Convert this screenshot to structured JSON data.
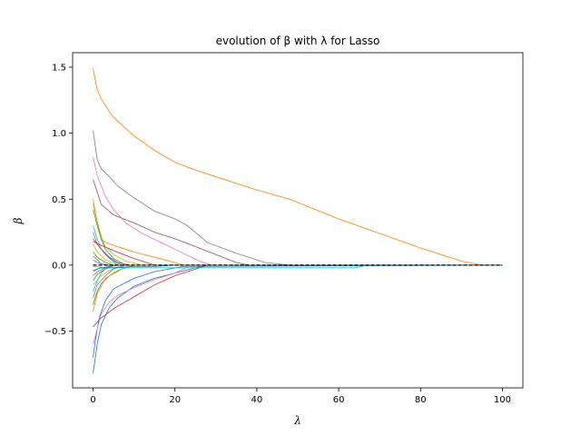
{
  "chart_data": {
    "type": "line",
    "title": "evolution of β with λ for Lasso",
    "xlabel": "λ",
    "ylabel": "β",
    "xlim": [
      -5,
      105
    ],
    "ylim": [
      -0.93,
      1.61
    ],
    "xticks": [
      0,
      20,
      40,
      60,
      80,
      100
    ],
    "yticks": [
      -0.5,
      0.0,
      0.5,
      1.0,
      1.5
    ],
    "xtick_labels": [
      "0",
      "20",
      "40",
      "60",
      "80",
      "100"
    ],
    "ytick_labels": [
      "−0.5",
      "0.0",
      "0.5",
      "1.0",
      "1.5"
    ],
    "grid": false,
    "legend": false,
    "reference_line": {
      "y": 0,
      "style": "dashed",
      "color": "#000000"
    },
    "series": [
      {
        "color": "#ff7f0e",
        "x": [
          0,
          1,
          2,
          4,
          5,
          10,
          15,
          20,
          25,
          30,
          40,
          48,
          60,
          70,
          80,
          90,
          95,
          100
        ],
        "y": [
          1.49,
          1.33,
          1.26,
          1.16,
          1.12,
          0.98,
          0.87,
          0.78,
          0.72,
          0.67,
          0.57,
          0.5,
          0.35,
          0.24,
          0.13,
          0.03,
          0.0,
          0.0
        ]
      },
      {
        "color": "#7f7f7f",
        "x": [
          0,
          1,
          2,
          4,
          6,
          10,
          15,
          20,
          23,
          28,
          35,
          42,
          48,
          50,
          100
        ],
        "y": [
          1.02,
          0.8,
          0.73,
          0.67,
          0.6,
          0.51,
          0.41,
          0.35,
          0.3,
          0.17,
          0.09,
          0.02,
          0.0,
          0.0,
          0.0
        ]
      },
      {
        "color": "#e377c2",
        "x": [
          0,
          1,
          3,
          5,
          8,
          12,
          18,
          22,
          26,
          29,
          100
        ],
        "y": [
          0.82,
          0.68,
          0.52,
          0.42,
          0.32,
          0.24,
          0.15,
          0.09,
          0.03,
          0.0,
          0.0
        ]
      },
      {
        "color": "#8c564b",
        "x": [
          0,
          2,
          5,
          10,
          15,
          20,
          25,
          30,
          35,
          38,
          100
        ],
        "y": [
          0.65,
          0.46,
          0.38,
          0.32,
          0.25,
          0.2,
          0.14,
          0.08,
          0.02,
          0.0,
          0.0
        ]
      },
      {
        "color": "#d62728",
        "x": [
          0,
          0.5,
          2,
          5,
          10,
          15,
          20,
          25,
          28,
          100
        ],
        "y": [
          -0.47,
          -0.45,
          -0.4,
          -0.33,
          -0.24,
          -0.15,
          -0.08,
          -0.03,
          0.0,
          0.0
        ]
      },
      {
        "color": "#1f77b4",
        "x": [
          0,
          1,
          2,
          4,
          6,
          10,
          15,
          20,
          25,
          28,
          100
        ],
        "y": [
          -0.82,
          -0.6,
          -0.45,
          -0.32,
          -0.25,
          -0.16,
          -0.1,
          -0.06,
          -0.02,
          0.0,
          0.0
        ]
      },
      {
        "color": "#1f77b4",
        "x": [
          0,
          0.5,
          1.5,
          3,
          5,
          10,
          15,
          22,
          100
        ],
        "y": [
          -0.7,
          -0.58,
          -0.4,
          -0.27,
          -0.18,
          -0.1,
          -0.05,
          -0.01,
          0.0
        ]
      },
      {
        "color": "#e377c2",
        "x": [
          0,
          2,
          4,
          6,
          10,
          15,
          20,
          24,
          100
        ],
        "y": [
          -0.6,
          -0.37,
          -0.28,
          -0.23,
          -0.17,
          -0.11,
          -0.06,
          0.0,
          0.0
        ]
      },
      {
        "color": "#bcbd22",
        "x": [
          0,
          1,
          2,
          3,
          5,
          8,
          12,
          100
        ],
        "y": [
          0.5,
          0.33,
          0.22,
          0.14,
          0.08,
          0.03,
          0.0,
          0.0
        ]
      },
      {
        "color": "#ff7f0e",
        "x": [
          0,
          2,
          4,
          6,
          10,
          15,
          20,
          22,
          100
        ],
        "y": [
          0.47,
          0.19,
          0.16,
          0.14,
          0.1,
          0.06,
          0.02,
          0.0,
          0.0
        ]
      },
      {
        "color": "#2ca02c",
        "x": [
          0,
          1,
          2,
          3,
          5,
          8,
          100
        ],
        "y": [
          0.42,
          0.3,
          0.2,
          0.12,
          0.05,
          0.0,
          0.0
        ]
      },
      {
        "color": "#17becf",
        "x": [
          0,
          1,
          2,
          4,
          6,
          100
        ],
        "y": [
          0.3,
          0.2,
          0.12,
          0.05,
          0.0,
          0.0
        ]
      },
      {
        "color": "#9467bd",
        "x": [
          0,
          1,
          3,
          5,
          7,
          100
        ],
        "y": [
          0.25,
          0.16,
          0.08,
          0.03,
          0.0,
          0.0
        ]
      },
      {
        "color": "#8c564b",
        "x": [
          0,
          2,
          4,
          6,
          9,
          100
        ],
        "y": [
          0.2,
          0.12,
          0.06,
          0.02,
          0.0,
          0.0
        ]
      },
      {
        "color": "#bcbd22",
        "x": [
          0,
          1,
          3,
          6,
          100
        ],
        "y": [
          0.16,
          0.1,
          0.04,
          0.0,
          0.0
        ]
      },
      {
        "color": "#d62728",
        "x": [
          0,
          2,
          5,
          10,
          15,
          100
        ],
        "y": [
          0.18,
          0.15,
          0.11,
          0.05,
          0.0,
          0.0
        ]
      },
      {
        "color": "#2ca02c",
        "x": [
          0,
          1,
          3,
          5,
          100
        ],
        "y": [
          0.1,
          0.06,
          0.02,
          0.0,
          0.0
        ]
      },
      {
        "color": "#9467bd",
        "x": [
          0,
          1,
          2,
          4,
          100
        ],
        "y": [
          0.07,
          0.04,
          0.01,
          0.0,
          0.0
        ]
      },
      {
        "color": "#7f7f7f",
        "x": [
          0,
          1,
          3,
          100
        ],
        "y": [
          0.04,
          0.02,
          0.0,
          0.0
        ]
      },
      {
        "color": "#2ca02c",
        "x": [
          0,
          1,
          3,
          6,
          100
        ],
        "y": [
          -0.08,
          -0.05,
          -0.02,
          0.0,
          0.0
        ]
      },
      {
        "color": "#8c564b",
        "x": [
          0,
          1,
          3,
          5,
          100
        ],
        "y": [
          -0.12,
          -0.07,
          -0.03,
          0.0,
          0.0
        ]
      },
      {
        "color": "#bcbd22",
        "x": [
          0,
          2,
          4,
          7,
          100
        ],
        "y": [
          -0.15,
          -0.08,
          -0.04,
          0.0,
          0.0
        ]
      },
      {
        "color": "#17becf",
        "x": [
          0,
          1,
          2,
          4,
          100
        ],
        "y": [
          -0.2,
          -0.12,
          -0.06,
          0.0,
          0.0
        ]
      },
      {
        "color": "#9467bd",
        "x": [
          0,
          1,
          3,
          5,
          8,
          100
        ],
        "y": [
          -0.25,
          -0.15,
          -0.08,
          -0.03,
          0.0,
          0.0
        ]
      },
      {
        "color": "#2ca02c",
        "x": [
          0,
          1,
          2,
          4,
          7,
          10,
          100
        ],
        "y": [
          -0.3,
          -0.2,
          -0.14,
          -0.08,
          -0.03,
          0.0,
          0.0
        ]
      },
      {
        "color": "#ff7f0e",
        "x": [
          0,
          1,
          3,
          6,
          10,
          100
        ],
        "y": [
          -0.35,
          -0.22,
          -0.1,
          -0.04,
          0.0,
          0.0
        ]
      },
      {
        "color": "#7f7f7f",
        "x": [
          0,
          1,
          2,
          4,
          6,
          100
        ],
        "y": [
          -0.05,
          -0.03,
          -0.02,
          -0.01,
          0.0,
          0.0
        ]
      },
      {
        "color": "#17becf",
        "x": [
          0,
          3,
          10,
          20,
          30,
          40,
          50,
          60,
          64,
          67,
          100
        ],
        "y": [
          -0.01,
          -0.02,
          -0.02,
          -0.02,
          -0.02,
          -0.02,
          -0.02,
          -0.02,
          -0.02,
          0.0,
          0.0
        ]
      },
      {
        "color": "#1f77b4",
        "x": [
          0,
          2,
          5,
          10,
          15,
          20,
          100
        ],
        "y": [
          -0.04,
          -0.02,
          -0.02,
          -0.01,
          -0.01,
          0.0,
          0.0
        ]
      },
      {
        "color": "#000000",
        "x": [
          0,
          100
        ],
        "y": [
          0.0,
          0.0
        ],
        "dashed": true
      }
    ]
  }
}
